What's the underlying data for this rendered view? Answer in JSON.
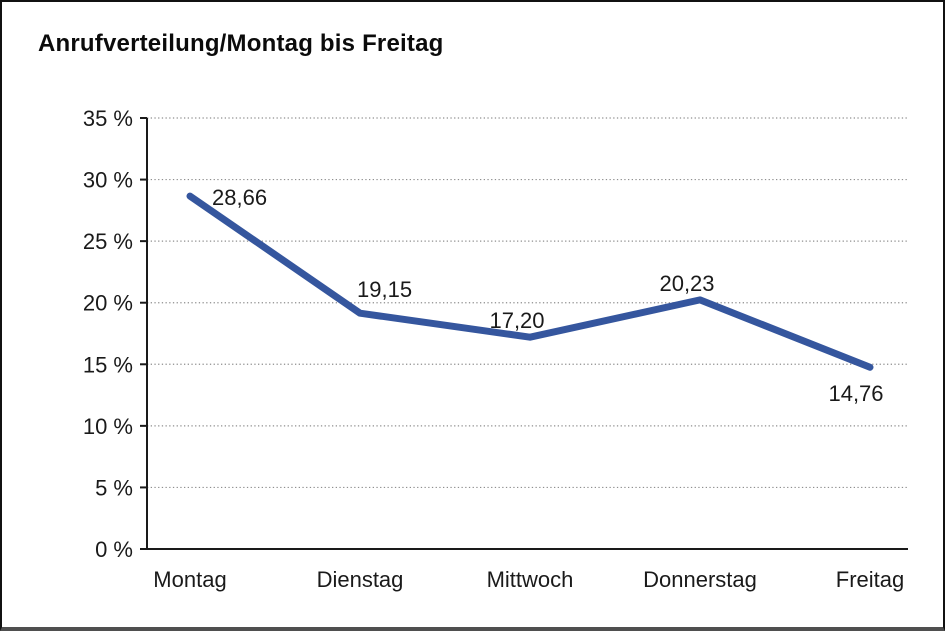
{
  "window": {
    "title": "Anrufverteilung/Montag bis Freitag"
  },
  "chart_data": {
    "type": "line",
    "title": "Anrufverteilung/Montag bis Freitag",
    "categories": [
      "Montag",
      "Dienstag",
      "Mittwoch",
      "Donnerstag",
      "Freitag"
    ],
    "values": [
      28.66,
      19.15,
      17.2,
      20.23,
      14.76
    ],
    "point_labels": [
      "28,66",
      "19,15",
      "17,20",
      "20,23",
      "14,76"
    ],
    "series_name": "Anrufverteilung",
    "xlabel": "",
    "ylabel": "",
    "ylim": [
      0,
      35
    ],
    "ytick_step": 5,
    "ytick_labels": [
      "0 %",
      "5 %",
      "10 %",
      "15 %",
      "20 %",
      "25 %",
      "30 %",
      "35 %"
    ],
    "grid": "horizontal-dotted",
    "legend": "none"
  },
  "colors": {
    "line": "#35569E",
    "grid": "#8f8f8f",
    "axis": "#1a1a1a",
    "text": "#1a1a1a",
    "frame": "#111111"
  }
}
